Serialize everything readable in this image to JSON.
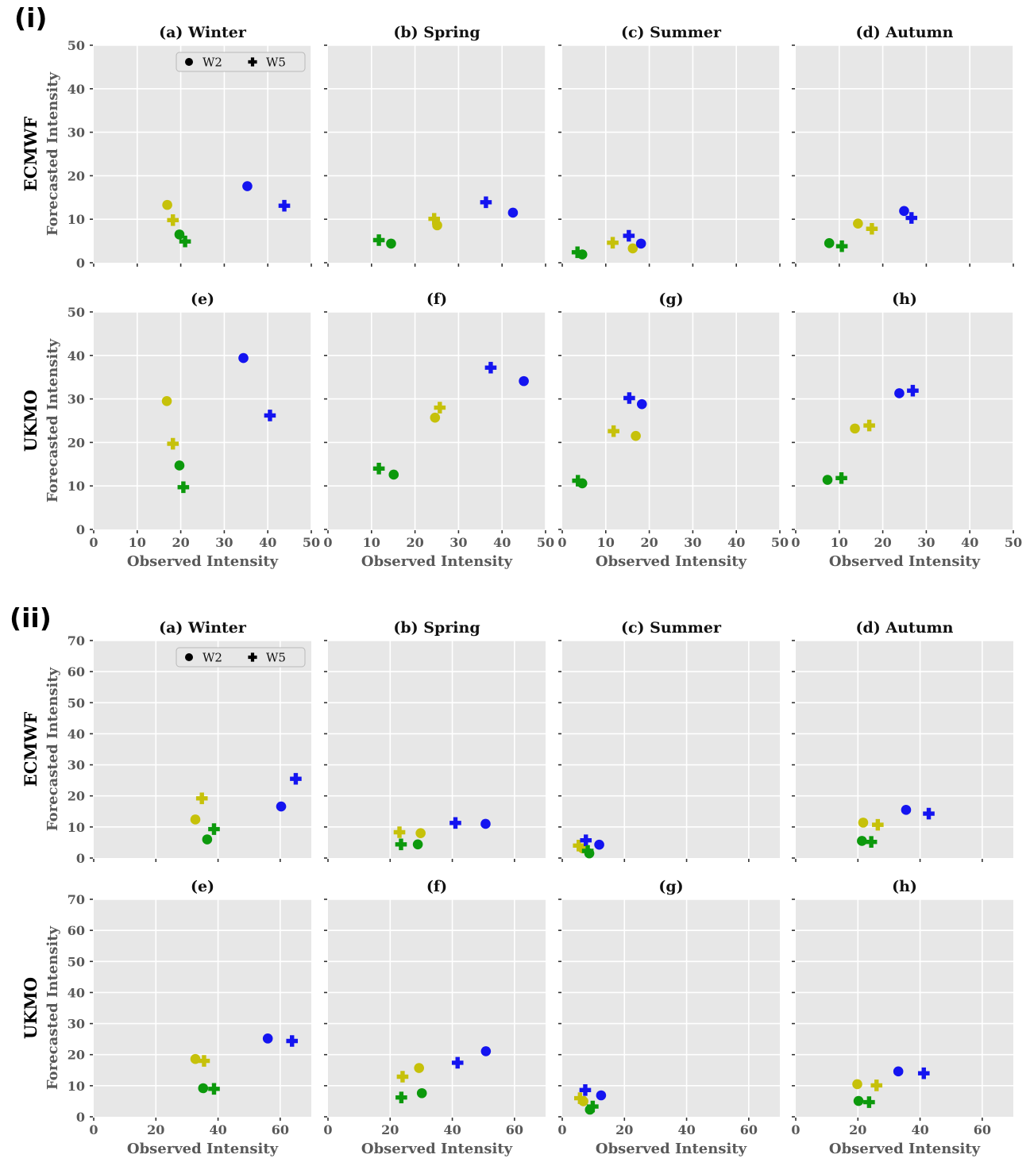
{
  "chart_data": {
    "type": "scatter",
    "xlabel": "Observed Intensity",
    "ylabel": "Forecasted Intensity",
    "legend": {
      "items": [
        {
          "marker": "circle",
          "label": "W2"
        },
        {
          "marker": "plus",
          "label": "W5"
        }
      ]
    },
    "colors": {
      "blue": "#1414f0",
      "yellow": "#c6c10a",
      "green": "#0c990c"
    },
    "style": {
      "plot_bg": "#e7e7e7",
      "grid": "#ffffff",
      "tick_text": "#595959",
      "title_text": "#111111"
    },
    "panels": [
      {
        "id": "i",
        "label": "(i)",
        "xlim": [
          0,
          50
        ],
        "ylim": [
          0,
          50
        ],
        "xticks": [
          0,
          10,
          20,
          30,
          40,
          50
        ],
        "yticks": [
          0,
          10,
          20,
          30,
          40,
          50
        ],
        "rows": [
          {
            "model": "ECMWF",
            "subplots": [
              {
                "title": "(a) Winter",
                "legend": true,
                "points": [
                  [
                    "yellow",
                    "circle",
                    16.9,
                    13.3
                  ],
                  [
                    "yellow",
                    "plus",
                    18.2,
                    9.8
                  ],
                  [
                    "green",
                    "circle",
                    19.7,
                    6.5
                  ],
                  [
                    "green",
                    "plus",
                    21.0,
                    4.9
                  ],
                  [
                    "blue",
                    "circle",
                    35.3,
                    17.6
                  ],
                  [
                    "blue",
                    "plus",
                    43.8,
                    13.1
                  ]
                ]
              },
              {
                "title": "(b) Spring",
                "legend": false,
                "points": [
                  [
                    "green",
                    "plus",
                    11.7,
                    5.2
                  ],
                  [
                    "green",
                    "circle",
                    14.5,
                    4.4
                  ],
                  [
                    "yellow",
                    "plus",
                    24.4,
                    10.1
                  ],
                  [
                    "yellow",
                    "circle",
                    25.1,
                    8.6
                  ],
                  [
                    "blue",
                    "plus",
                    36.3,
                    13.9
                  ],
                  [
                    "blue",
                    "circle",
                    42.5,
                    11.5
                  ]
                ]
              },
              {
                "title": "(c) Summer",
                "legend": false,
                "points": [
                  [
                    "green",
                    "plus",
                    3.5,
                    2.4
                  ],
                  [
                    "green",
                    "circle",
                    4.6,
                    1.9
                  ],
                  [
                    "yellow",
                    "plus",
                    11.6,
                    4.6
                  ],
                  [
                    "yellow",
                    "circle",
                    16.2,
                    3.3
                  ],
                  [
                    "blue",
                    "plus",
                    15.3,
                    6.2
                  ],
                  [
                    "blue",
                    "circle",
                    18.1,
                    4.4
                  ]
                ]
              },
              {
                "title": "(d) Autumn",
                "legend": false,
                "points": [
                  [
                    "green",
                    "circle",
                    7.7,
                    4.5
                  ],
                  [
                    "green",
                    "plus",
                    10.6,
                    3.8
                  ],
                  [
                    "yellow",
                    "circle",
                    14.3,
                    9.0
                  ],
                  [
                    "yellow",
                    "plus",
                    17.5,
                    7.8
                  ],
                  [
                    "blue",
                    "circle",
                    24.9,
                    11.9
                  ],
                  [
                    "blue",
                    "plus",
                    26.6,
                    10.3
                  ]
                ]
              }
            ]
          },
          {
            "model": "UKMO",
            "subplots": [
              {
                "title": "(e)",
                "legend": false,
                "points": [
                  [
                    "yellow",
                    "circle",
                    16.8,
                    29.5
                  ],
                  [
                    "yellow",
                    "plus",
                    18.2,
                    19.7
                  ],
                  [
                    "green",
                    "circle",
                    19.7,
                    14.7
                  ],
                  [
                    "green",
                    "plus",
                    20.6,
                    9.7
                  ],
                  [
                    "blue",
                    "circle",
                    34.4,
                    39.4
                  ],
                  [
                    "blue",
                    "plus",
                    40.5,
                    26.2
                  ]
                ]
              },
              {
                "title": "(f)",
                "legend": false,
                "points": [
                  [
                    "green",
                    "plus",
                    11.7,
                    14.0
                  ],
                  [
                    "green",
                    "circle",
                    15.1,
                    12.6
                  ],
                  [
                    "yellow",
                    "circle",
                    24.6,
                    25.7
                  ],
                  [
                    "yellow",
                    "plus",
                    25.7,
                    28.0
                  ],
                  [
                    "blue",
                    "plus",
                    37.4,
                    37.2
                  ],
                  [
                    "blue",
                    "circle",
                    45.0,
                    34.1
                  ]
                ]
              },
              {
                "title": "(g)",
                "legend": false,
                "points": [
                  [
                    "green",
                    "plus",
                    3.6,
                    11.2
                  ],
                  [
                    "green",
                    "circle",
                    4.6,
                    10.6
                  ],
                  [
                    "yellow",
                    "plus",
                    11.8,
                    22.6
                  ],
                  [
                    "yellow",
                    "circle",
                    16.9,
                    21.5
                  ],
                  [
                    "blue",
                    "plus",
                    15.4,
                    30.2
                  ],
                  [
                    "blue",
                    "circle",
                    18.3,
                    28.8
                  ]
                ]
              },
              {
                "title": "(h)",
                "legend": false,
                "points": [
                  [
                    "green",
                    "circle",
                    7.3,
                    11.4
                  ],
                  [
                    "green",
                    "plus",
                    10.5,
                    11.8
                  ],
                  [
                    "yellow",
                    "circle",
                    13.6,
                    23.2
                  ],
                  [
                    "yellow",
                    "plus",
                    16.9,
                    23.9
                  ],
                  [
                    "blue",
                    "circle",
                    23.8,
                    31.3
                  ],
                  [
                    "blue",
                    "plus",
                    26.9,
                    31.9
                  ]
                ]
              }
            ]
          }
        ]
      },
      {
        "id": "ii",
        "label": "(ii)",
        "xlim": [
          0,
          70
        ],
        "ylim": [
          0,
          70
        ],
        "xticks": [
          0,
          20,
          40,
          60
        ],
        "yticks": [
          0,
          10,
          20,
          30,
          40,
          50,
          60,
          70
        ],
        "rows": [
          {
            "model": "ECMWF",
            "subplots": [
              {
                "title": "(a) Winter",
                "legend": true,
                "points": [
                  [
                    "yellow",
                    "circle",
                    32.7,
                    12.4
                  ],
                  [
                    "yellow",
                    "plus",
                    34.8,
                    19.2
                  ],
                  [
                    "green",
                    "circle",
                    36.5,
                    6.0
                  ],
                  [
                    "green",
                    "plus",
                    38.7,
                    9.3
                  ],
                  [
                    "blue",
                    "circle",
                    60.3,
                    16.6
                  ],
                  [
                    "blue",
                    "plus",
                    65.0,
                    25.5
                  ]
                ]
              },
              {
                "title": "(b) Spring",
                "legend": false,
                "points": [
                  [
                    "yellow",
                    "plus",
                    23.0,
                    8.3
                  ],
                  [
                    "yellow",
                    "circle",
                    29.8,
                    8.0
                  ],
                  [
                    "green",
                    "plus",
                    23.5,
                    4.4
                  ],
                  [
                    "green",
                    "circle",
                    28.9,
                    4.4
                  ],
                  [
                    "blue",
                    "plus",
                    41.0,
                    11.3
                  ],
                  [
                    "blue",
                    "circle",
                    50.7,
                    11.0
                  ]
                ]
              },
              {
                "title": "(c) Summer",
                "legend": false,
                "points": [
                  [
                    "yellow",
                    "plus",
                    5.3,
                    4.0
                  ],
                  [
                    "yellow",
                    "circle",
                    6.6,
                    3.1
                  ],
                  [
                    "blue",
                    "plus",
                    7.6,
                    5.7
                  ],
                  [
                    "green",
                    "plus",
                    8.2,
                    2.3
                  ],
                  [
                    "green",
                    "circle",
                    8.7,
                    1.5
                  ],
                  [
                    "blue",
                    "circle",
                    11.9,
                    4.3
                  ]
                ]
              },
              {
                "title": "(d) Autumn",
                "legend": false,
                "points": [
                  [
                    "yellow",
                    "circle",
                    21.7,
                    11.4
                  ],
                  [
                    "yellow",
                    "plus",
                    26.4,
                    10.7
                  ],
                  [
                    "green",
                    "circle",
                    21.3,
                    5.5
                  ],
                  [
                    "green",
                    "plus",
                    24.3,
                    5.2
                  ],
                  [
                    "blue",
                    "circle",
                    35.5,
                    15.5
                  ],
                  [
                    "blue",
                    "plus",
                    42.8,
                    14.3
                  ]
                ]
              }
            ]
          },
          {
            "model": "UKMO",
            "subplots": [
              {
                "title": "(e)",
                "legend": false,
                "points": [
                  [
                    "yellow",
                    "circle",
                    32.7,
                    18.6
                  ],
                  [
                    "yellow",
                    "plus",
                    35.5,
                    18.0
                  ],
                  [
                    "green",
                    "circle",
                    35.2,
                    9.2
                  ],
                  [
                    "green",
                    "plus",
                    38.7,
                    9.0
                  ],
                  [
                    "blue",
                    "circle",
                    56.0,
                    25.2
                  ],
                  [
                    "blue",
                    "plus",
                    63.8,
                    24.4
                  ]
                ]
              },
              {
                "title": "(f)",
                "legend": false,
                "points": [
                  [
                    "yellow",
                    "plus",
                    24.0,
                    12.9
                  ],
                  [
                    "yellow",
                    "circle",
                    29.3,
                    15.7
                  ],
                  [
                    "green",
                    "plus",
                    23.6,
                    6.2
                  ],
                  [
                    "green",
                    "circle",
                    30.2,
                    7.6
                  ],
                  [
                    "blue",
                    "plus",
                    41.7,
                    17.4
                  ],
                  [
                    "blue",
                    "circle",
                    50.8,
                    21.1
                  ]
                ]
              },
              {
                "title": "(g)",
                "legend": false,
                "points": [
                  [
                    "yellow",
                    "plus",
                    5.7,
                    6.0
                  ],
                  [
                    "yellow",
                    "circle",
                    6.8,
                    5.0
                  ],
                  [
                    "blue",
                    "plus",
                    7.4,
                    8.6
                  ],
                  [
                    "green",
                    "plus",
                    9.8,
                    3.3
                  ],
                  [
                    "green",
                    "circle",
                    8.9,
                    2.3
                  ],
                  [
                    "blue",
                    "circle",
                    12.5,
                    6.9
                  ]
                ]
              },
              {
                "title": "(h)",
                "legend": false,
                "points": [
                  [
                    "yellow",
                    "circle",
                    19.8,
                    10.5
                  ],
                  [
                    "yellow",
                    "plus",
                    26.0,
                    10.1
                  ],
                  [
                    "green",
                    "circle",
                    20.2,
                    5.1
                  ],
                  [
                    "green",
                    "plus",
                    23.6,
                    4.7
                  ],
                  [
                    "blue",
                    "circle",
                    33.0,
                    14.6
                  ],
                  [
                    "blue",
                    "plus",
                    41.2,
                    14.0
                  ]
                ]
              }
            ]
          }
        ]
      }
    ]
  }
}
